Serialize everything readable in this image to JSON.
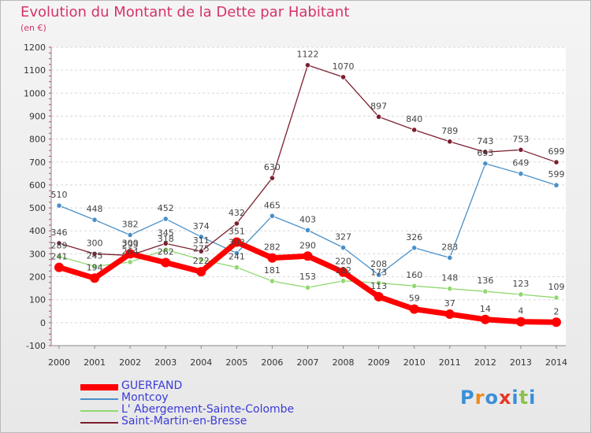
{
  "chart_data": {
    "type": "line",
    "title": "Evolution du Montant de la Dette par Habitant",
    "unit": "(en €)",
    "x": [
      "2000",
      "2001",
      "2002",
      "2003",
      "2004",
      "2005",
      "2006",
      "2007",
      "2008",
      "2009",
      "2010",
      "2011",
      "2012",
      "2013",
      "2014"
    ],
    "ylim": [
      -100,
      1200
    ],
    "yticks": [
      -100,
      0,
      100,
      200,
      300,
      400,
      500,
      600,
      700,
      800,
      900,
      1000,
      1100,
      1200
    ],
    "grid": true,
    "legend_position": "bottom-left",
    "series": [
      {
        "name": "GUERFAND",
        "color": "#ff0000",
        "values": [
          241,
          194,
          300,
          262,
          222,
          351,
          282,
          290,
          220,
          113,
          59,
          37,
          14,
          4,
          2
        ],
        "labels": [
          "241",
          "194",
          "300",
          "262",
          "222",
          "351",
          "282",
          "290",
          "220",
          "113",
          "59",
          "37",
          "14",
          "4",
          "2"
        ]
      },
      {
        "name": "Montcoy",
        "color": "#4a90c8",
        "values": [
          510,
          448,
          382,
          452,
          374,
          303,
          465,
          403,
          327,
          208,
          326,
          283,
          693,
          649,
          599
        ],
        "labels": [
          "510",
          "448",
          "382",
          "452",
          "374",
          "303",
          "465",
          "403",
          "327",
          "208",
          "326",
          "283",
          "693",
          "649",
          "599"
        ]
      },
      {
        "name": "L' Abergement-Sainte-Colombe",
        "color": "#90d870",
        "values": [
          289,
          245,
          264,
          318,
          275,
          241,
          181,
          153,
          182,
          173,
          160,
          148,
          136,
          123,
          109
        ],
        "labels": [
          "289",
          "245",
          "264",
          "318",
          "275",
          "241",
          "181",
          "153",
          "182",
          "173",
          "160",
          "148",
          "136",
          "123",
          "109"
        ]
      },
      {
        "name": "Saint-Martin-en-Bresse",
        "color": "#7b1f2f",
        "values": [
          346,
          300,
          293,
          345,
          311,
          432,
          630,
          1122,
          1070,
          897,
          840,
          789,
          743,
          753,
          699
        ],
        "labels": [
          "346",
          "300",
          "293",
          "345",
          "311",
          "432",
          "630",
          "1122",
          "1070",
          "897",
          "840",
          "789",
          "743",
          "753",
          "699"
        ]
      }
    ]
  },
  "logo": {
    "text": "Proxiti",
    "letters": [
      "P",
      "r",
      "o",
      "x",
      "i",
      "t",
      "i"
    ],
    "colors": [
      "#3a8fd8",
      "#f08a1c",
      "#3a8fd8",
      "#e8362a",
      "#3a8fd8",
      "#8bc34a",
      "#3a8fd8"
    ]
  }
}
